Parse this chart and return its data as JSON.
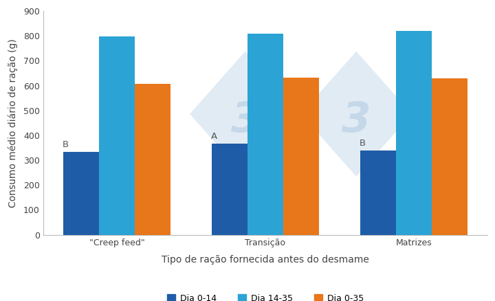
{
  "categories": [
    "\"Creep feed\"",
    "Transição",
    "Matrizes"
  ],
  "series": {
    "Dia 0-14": [
      333,
      367,
      338
    ],
    "Dia 14-35": [
      797,
      808,
      820
    ],
    "Dia 0-35": [
      607,
      632,
      628
    ]
  },
  "colors": {
    "Dia 0-14": "#1f5ca8",
    "Dia 14-35": "#2ba3d4",
    "Dia 0-35": "#e8761a"
  },
  "ylabel": "Consumo médio diário de ração (g)",
  "xlabel": "Tipo de ração fornecida antes do desmame",
  "ylim": [
    0,
    900
  ],
  "yticks": [
    0,
    100,
    200,
    300,
    400,
    500,
    600,
    700,
    800,
    900
  ],
  "annotations": [
    {
      "text": "B",
      "group": 0,
      "series_idx": 0,
      "value": 333
    },
    {
      "text": "A",
      "group": 1,
      "series_idx": 0,
      "value": 367
    },
    {
      "text": "B",
      "group": 2,
      "series_idx": 0,
      "value": 338
    }
  ],
  "bar_width": 0.24,
  "background_color": "#ffffff",
  "spine_color": "#bbbbbb",
  "tick_fontsize": 9,
  "label_fontsize": 10,
  "legend_fontsize": 9,
  "watermark_color": "#c5d8ea",
  "watermark_alpha": 0.5,
  "series_names": [
    "Dia 0-14",
    "Dia 14-35",
    "Dia 0-35"
  ]
}
